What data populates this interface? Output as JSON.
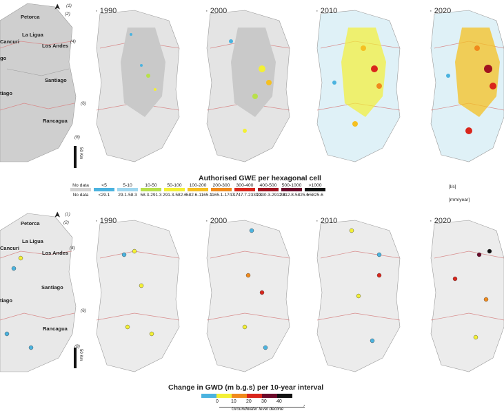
{
  "top_years": [
    "· 1990",
    "· 2000",
    "· 2010",
    "· 2020"
  ],
  "bottom_years": [
    "· 1990",
    "· 2000",
    "· 2010",
    "· 2020"
  ],
  "region_numbers": [
    "(1)",
    "(2)",
    "(4)",
    "(6)",
    "(8)"
  ],
  "places": [
    "Petorca",
    "La Ligua",
    "Los Andes",
    "Santiago",
    "Rancagua"
  ],
  "place_fragments": [
    "Cancuri",
    "go",
    "tiago"
  ],
  "scale_label": "50 Km",
  "north_symbol": "➤",
  "gwe_legend": {
    "title": "Authorised GWE per hexagonal cell",
    "items": [
      {
        "label": "No data",
        "value": "No data",
        "color": "#d3d3d3"
      },
      {
        "label": "<5",
        "value": "<29.1",
        "color": "#4bb3df"
      },
      {
        "label": "5-10",
        "value": "29.1-58.3",
        "color": "#9fd7ef"
      },
      {
        "label": "10-50",
        "value": "58.3-291.3",
        "color": "#b8e04a"
      },
      {
        "label": "50-100",
        "value": "291.3-582.6",
        "color": "#f3f035"
      },
      {
        "label": "100-200",
        "value": "582.6-1165.1",
        "color": "#f5c021"
      },
      {
        "label": "200-300",
        "value": "1165.1-1747.7",
        "color": "#f08a1c"
      },
      {
        "label": "300-400",
        "value": "1747.7-2330.3",
        "color": "#d9261c"
      },
      {
        "label": "400-500",
        "value": "2330.3-2912.8",
        "color": "#a0131f"
      },
      {
        "label": "500-1000",
        "value": "2912.8-5825.6",
        "color": "#6b0a2a"
      },
      {
        "label": ">1000",
        "value": ">5825.6",
        "color": "#111111"
      }
    ],
    "unit_top": "[l/s]",
    "unit_bottom": "[mm/year]"
  },
  "gwd_legend": {
    "title": "Change in GWD (m b.g.s) per 10-year interval",
    "colors": [
      "#4bb3df",
      "#f3f035",
      "#f08a1c",
      "#d9261c",
      "#6b0a2a",
      "#111111"
    ],
    "ticks": [
      "0",
      "10",
      "20",
      "30",
      "40"
    ],
    "decline_label": "Groundwater level decline"
  }
}
